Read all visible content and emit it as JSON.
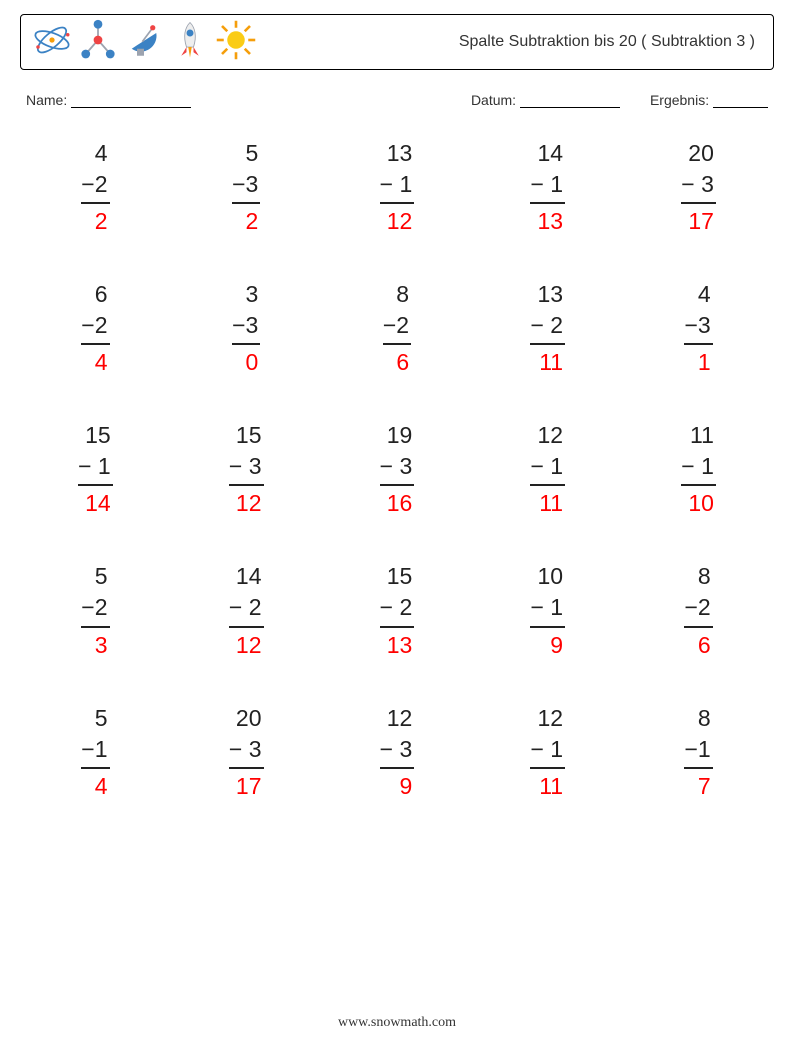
{
  "header": {
    "title": "Spalte Subtraktion bis 20 ( Subtraktion 3 )",
    "title_fontsize": 16,
    "border_color": "#000000",
    "icon_colors": {
      "blue": "#3b82c4",
      "orange": "#f59e0b",
      "red": "#ef4444",
      "yellow": "#facc15",
      "gray": "#9ca3af"
    }
  },
  "meta": {
    "name_label": "Name:",
    "date_label": "Datum:",
    "result_label": "Ergebnis:"
  },
  "style": {
    "background_color": "#ffffff",
    "text_color": "#222222",
    "answer_color": "#ff0000",
    "rule_color": "#222222",
    "problem_fontsize": 23,
    "columns": 5,
    "rows": 5
  },
  "problems": [
    {
      "minuend": 4,
      "subtrahend": 2,
      "answer": 2
    },
    {
      "minuend": 5,
      "subtrahend": 3,
      "answer": 2
    },
    {
      "minuend": 13,
      "subtrahend": 1,
      "answer": 12
    },
    {
      "minuend": 14,
      "subtrahend": 1,
      "answer": 13
    },
    {
      "minuend": 20,
      "subtrahend": 3,
      "answer": 17
    },
    {
      "minuend": 6,
      "subtrahend": 2,
      "answer": 4
    },
    {
      "minuend": 3,
      "subtrahend": 3,
      "answer": 0
    },
    {
      "minuend": 8,
      "subtrahend": 2,
      "answer": 6
    },
    {
      "minuend": 13,
      "subtrahend": 2,
      "answer": 11
    },
    {
      "minuend": 4,
      "subtrahend": 3,
      "answer": 1
    },
    {
      "minuend": 15,
      "subtrahend": 1,
      "answer": 14
    },
    {
      "minuend": 15,
      "subtrahend": 3,
      "answer": 12
    },
    {
      "minuend": 19,
      "subtrahend": 3,
      "answer": 16
    },
    {
      "minuend": 12,
      "subtrahend": 1,
      "answer": 11
    },
    {
      "minuend": 11,
      "subtrahend": 1,
      "answer": 10
    },
    {
      "minuend": 5,
      "subtrahend": 2,
      "answer": 3
    },
    {
      "minuend": 14,
      "subtrahend": 2,
      "answer": 12
    },
    {
      "minuend": 15,
      "subtrahend": 2,
      "answer": 13
    },
    {
      "minuend": 10,
      "subtrahend": 1,
      "answer": 9
    },
    {
      "minuend": 8,
      "subtrahend": 2,
      "answer": 6
    },
    {
      "minuend": 5,
      "subtrahend": 1,
      "answer": 4
    },
    {
      "minuend": 20,
      "subtrahend": 3,
      "answer": 17
    },
    {
      "minuend": 12,
      "subtrahend": 3,
      "answer": 9
    },
    {
      "minuend": 12,
      "subtrahend": 1,
      "answer": 11
    },
    {
      "minuend": 8,
      "subtrahend": 1,
      "answer": 7
    }
  ],
  "footer": {
    "text": "www.snowmath.com"
  }
}
